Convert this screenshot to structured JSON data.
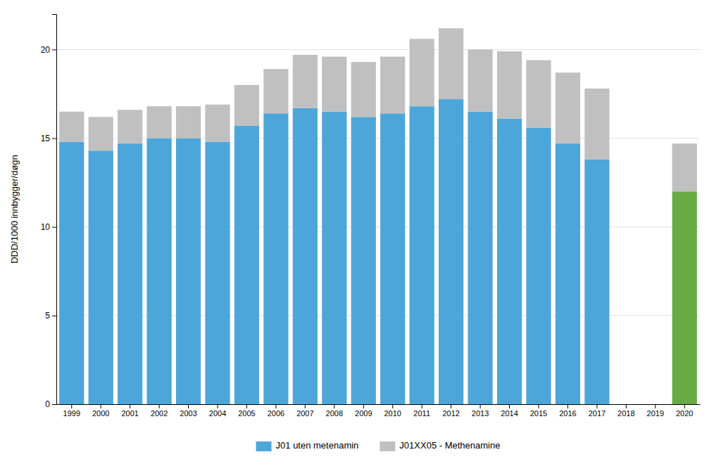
{
  "chart_data": {
    "type": "bar",
    "stacked": true,
    "categories": [
      "1999",
      "2000",
      "2001",
      "2002",
      "2003",
      "2004",
      "2005",
      "2006",
      "2007",
      "2008",
      "2009",
      "2010",
      "2011",
      "2012",
      "2013",
      "2014",
      "2015",
      "2016",
      "2017",
      "2018",
      "2019",
      "2020"
    ],
    "series": [
      {
        "name": "J01 uten metenamin",
        "color": "#4da6d9",
        "colors": [
          "#4da6d9",
          "#4da6d9",
          "#4da6d9",
          "#4da6d9",
          "#4da6d9",
          "#4da6d9",
          "#4da6d9",
          "#4da6d9",
          "#4da6d9",
          "#4da6d9",
          "#4da6d9",
          "#4da6d9",
          "#4da6d9",
          "#4da6d9",
          "#4da6d9",
          "#4da6d9",
          "#4da6d9",
          "#4da6d9",
          "#4da6d9",
          "#4da6d9",
          "#4da6d9",
          "#6aaa45"
        ],
        "values": [
          14.8,
          14.3,
          14.7,
          15.0,
          15.0,
          14.8,
          15.7,
          16.4,
          16.7,
          16.5,
          16.2,
          16.4,
          16.8,
          17.2,
          16.5,
          16.1,
          15.6,
          14.7,
          13.8,
          0,
          0,
          12.0
        ]
      },
      {
        "name": "J01XX05 - Methenamine",
        "color": "#c0c0c0",
        "values": [
          1.7,
          1.9,
          1.9,
          1.8,
          1.8,
          2.1,
          2.3,
          2.5,
          3.0,
          3.1,
          3.1,
          3.2,
          3.8,
          4.0,
          3.5,
          3.8,
          3.8,
          4.0,
          4.0,
          0,
          0,
          2.7
        ]
      }
    ],
    "ylabel": "DDD/1000 innbygger/døgn",
    "ylim": [
      0,
      22
    ],
    "yticks": [
      0,
      5,
      10,
      15,
      20
    ],
    "grid": true,
    "legend": "bottom"
  }
}
